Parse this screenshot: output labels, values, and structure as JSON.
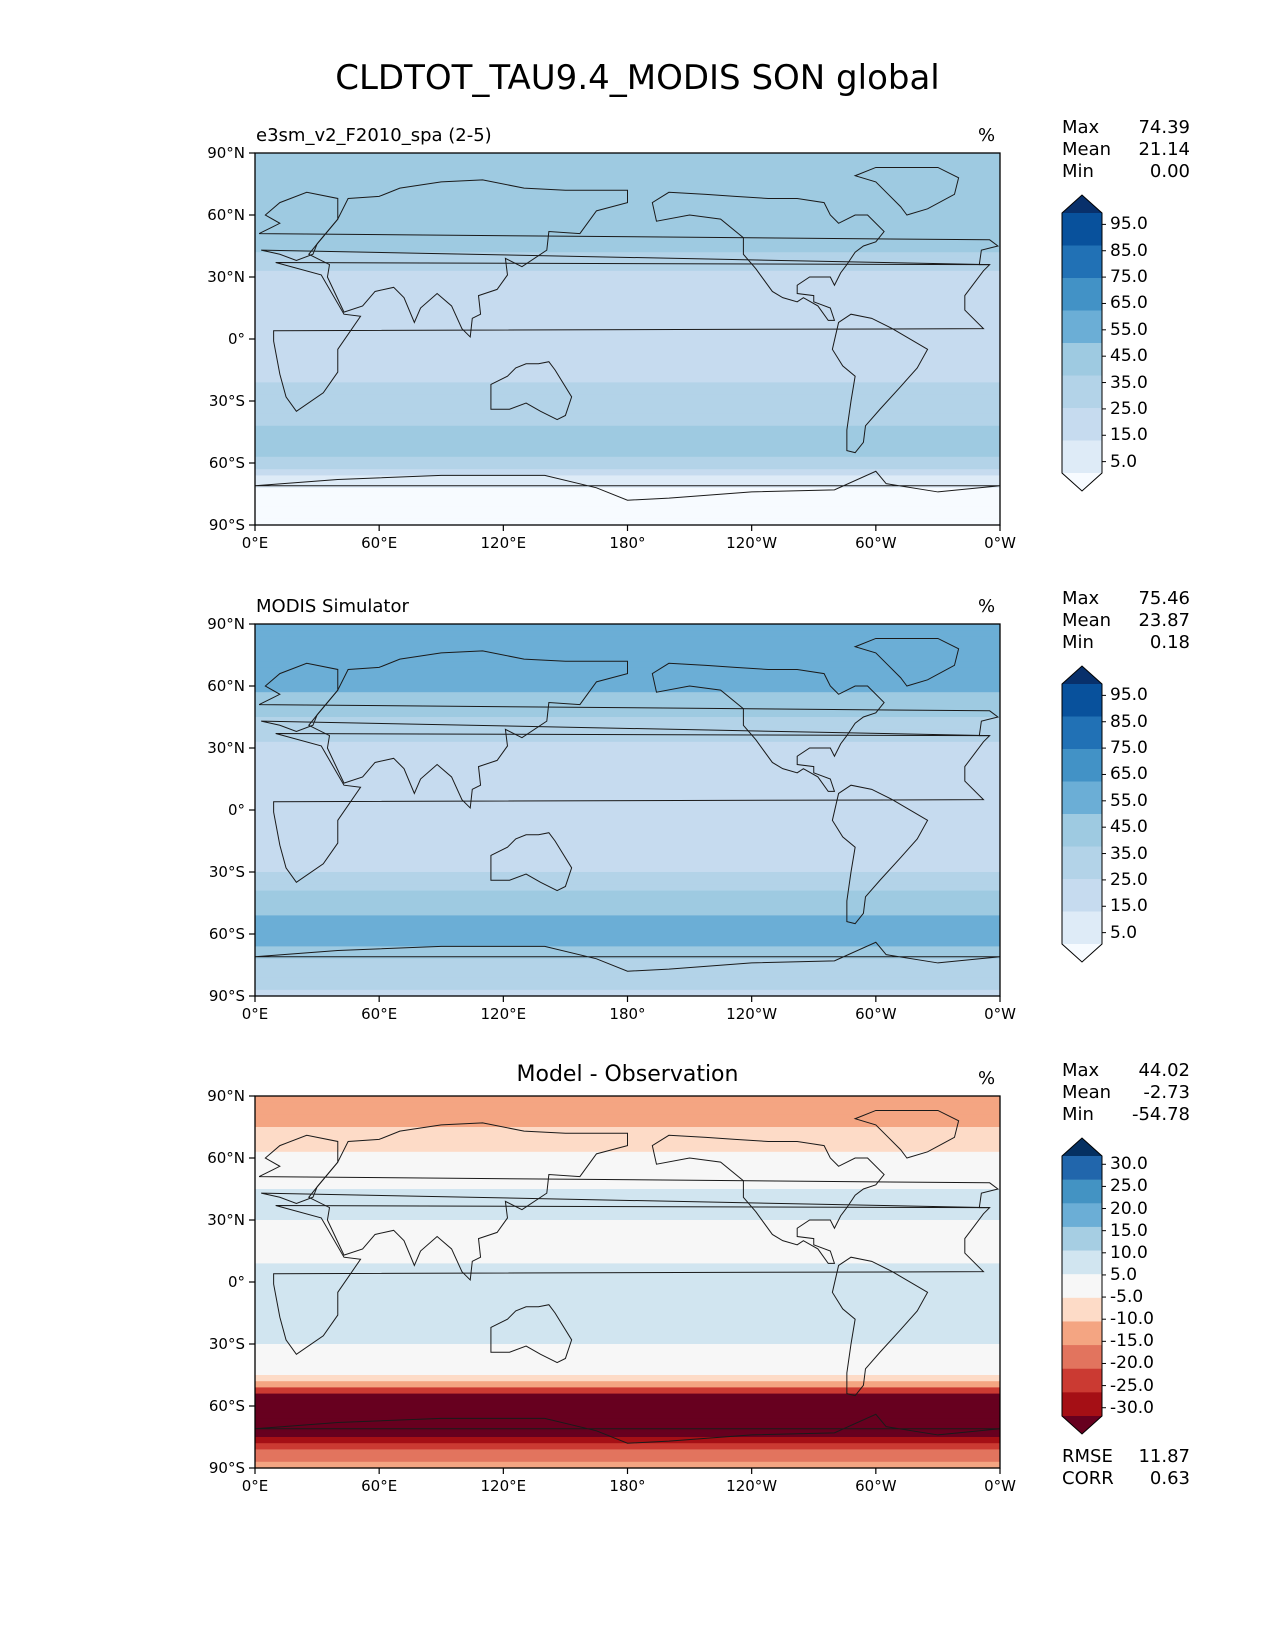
{
  "figure": {
    "title": "CLDTOT_TAU9.4_MODIS SON global"
  },
  "chart_data": [
    {
      "type": "heatmap",
      "title": "e3sm_v2_F2010_spa (2-5)",
      "units": "%",
      "xticks": [
        "0°E",
        "60°E",
        "120°E",
        "180°",
        "120°W",
        "60°W",
        "0°W"
      ],
      "yticks": [
        "90°N",
        "60°N",
        "30°N",
        "0°",
        "30°S",
        "60°S",
        "90°S"
      ],
      "xlim": [
        0,
        360
      ],
      "ylim": [
        -90,
        90
      ],
      "stats": {
        "max_label": "Max",
        "max": "74.39",
        "mean_label": "Mean",
        "mean": "21.14",
        "min_label": "Min",
        "min": "0.00"
      },
      "colorbar": {
        "levels": [
          0,
          5,
          10,
          20,
          30,
          40,
          50,
          60,
          70,
          80,
          90,
          100
        ],
        "labels": [
          "95.0",
          "85.0",
          "75.0",
          "65.0",
          "55.0",
          "45.0",
          "35.0",
          "25.0",
          "15.0",
          "5.0"
        ],
        "colors": [
          "#f7fbff",
          "#deebf7",
          "#c6dbef",
          "#b3d3e8",
          "#9ecae1",
          "#6baed6",
          "#4292c6",
          "#2171b5",
          "#08519c",
          "#08306b"
        ]
      },
      "zonal_profile": {
        "lat": [
          90,
          75,
          60,
          45,
          30,
          15,
          0,
          -15,
          -30,
          -45,
          -55,
          -65,
          -75,
          -90
        ],
        "value": [
          30,
          35,
          38,
          33,
          18,
          15,
          20,
          18,
          22,
          32,
          35,
          12,
          3,
          2
        ]
      }
    },
    {
      "type": "heatmap",
      "title": "MODIS Simulator",
      "units": "%",
      "xticks": [
        "0°E",
        "60°E",
        "120°E",
        "180°",
        "120°W",
        "60°W",
        "0°W"
      ],
      "yticks": [
        "90°N",
        "60°N",
        "30°N",
        "0°",
        "30°S",
        "60°S",
        "90°S"
      ],
      "xlim": [
        0,
        360
      ],
      "ylim": [
        -90,
        90
      ],
      "stats": {
        "max_label": "Max",
        "max": "75.46",
        "mean_label": "Mean",
        "mean": "23.87",
        "min_label": "Min",
        "min": "0.18"
      },
      "colorbar": {
        "levels": [
          0,
          5,
          10,
          20,
          30,
          40,
          50,
          60,
          70,
          80,
          90,
          100
        ],
        "labels": [
          "95.0",
          "85.0",
          "75.0",
          "65.0",
          "55.0",
          "45.0",
          "35.0",
          "25.0",
          "15.0",
          "5.0"
        ],
        "colors": [
          "#f7fbff",
          "#deebf7",
          "#c6dbef",
          "#b3d3e8",
          "#9ecae1",
          "#6baed6",
          "#4292c6",
          "#2171b5",
          "#08519c",
          "#08306b"
        ]
      },
      "zonal_profile": {
        "lat": [
          90,
          75,
          60,
          45,
          30,
          15,
          0,
          -15,
          -30,
          -45,
          -55,
          -65,
          -75,
          -90
        ],
        "value": [
          45,
          40,
          42,
          30,
          18,
          16,
          20,
          15,
          20,
          35,
          45,
          40,
          25,
          18
        ]
      }
    },
    {
      "type": "heatmap",
      "title": "Model - Observation",
      "units": "%",
      "xticks": [
        "0°E",
        "60°E",
        "120°E",
        "180°",
        "120°W",
        "60°W",
        "0°W"
      ],
      "yticks": [
        "90°N",
        "60°N",
        "30°N",
        "0°",
        "30°S",
        "60°S",
        "90°S"
      ],
      "xlim": [
        0,
        360
      ],
      "ylim": [
        -90,
        90
      ],
      "stats": {
        "max_label": "Max",
        "max": "44.02",
        "mean_label": "Mean",
        "mean": "-2.73",
        "min_label": "Min",
        "min": "-54.78"
      },
      "metrics": {
        "rmse_label": "RMSE",
        "rmse": "11.87",
        "corr_label": "CORR",
        "corr": "0.63"
      },
      "colorbar": {
        "levels": [
          -35,
          -30,
          -25,
          -20,
          -15,
          -10,
          -5,
          0,
          5,
          10,
          15,
          20,
          25,
          30,
          35
        ],
        "labels": [
          "30.0",
          "25.0",
          "20.0",
          "15.0",
          "10.0",
          "5.0",
          "-5.0",
          "-10.0",
          "-15.0",
          "-20.0",
          "-25.0",
          "-30.0"
        ],
        "colors": [
          "#67001f",
          "#a50f15",
          "#cb3a32",
          "#e2745e",
          "#f4a582",
          "#fddbc7",
          "#f7f7f7",
          "#d1e5f0",
          "#a6cee3",
          "#6baed6",
          "#4393c3",
          "#2166ac",
          "#053061"
        ]
      },
      "zonal_profile": {
        "lat": [
          90,
          75,
          60,
          45,
          30,
          15,
          0,
          -15,
          -30,
          -45,
          -55,
          -65,
          -75,
          -90
        ],
        "value": [
          -15,
          -10,
          -4,
          0,
          0,
          -2,
          2,
          3,
          0,
          -2,
          -30,
          -40,
          -30,
          -10
        ]
      }
    }
  ]
}
